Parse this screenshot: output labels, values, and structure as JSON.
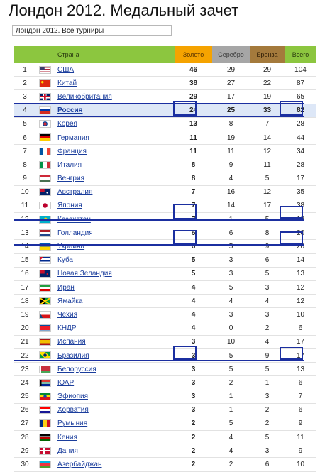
{
  "title": "Лондон 2012. Медальный зачет",
  "tournament_selector": {
    "value": "Лондон 2012. Все турниры"
  },
  "table": {
    "headers": {
      "rank": "",
      "flag": "",
      "country": "Страна",
      "gold": "Золото",
      "silver": "Серебро",
      "bronze": "Бронза",
      "total": "Всего"
    },
    "rows": [
      {
        "rank": "1",
        "country": "США",
        "gold": "46",
        "silver": "29",
        "bronze": "29",
        "total": "104",
        "flag": "us-flag-icon"
      },
      {
        "rank": "2",
        "country": "Китай",
        "gold": "38",
        "silver": "27",
        "bronze": "22",
        "total": "87",
        "flag": "cn-flag-icon"
      },
      {
        "rank": "3",
        "country": "Великобритания",
        "gold": "29",
        "silver": "17",
        "bronze": "19",
        "total": "65",
        "flag": "gb-flag-icon"
      },
      {
        "rank": "4",
        "country": "Россия",
        "gold": "24",
        "silver": "25",
        "bronze": "33",
        "total": "82",
        "flag": "ru-flag-icon",
        "highlighted": true
      },
      {
        "rank": "5",
        "country": "Корея",
        "gold": "13",
        "silver": "8",
        "bronze": "7",
        "total": "28",
        "flag": "kr-flag-icon"
      },
      {
        "rank": "6",
        "country": "Германия",
        "gold": "11",
        "silver": "19",
        "bronze": "14",
        "total": "44",
        "flag": "de-flag-icon"
      },
      {
        "rank": "7",
        "country": "Франция",
        "gold": "11",
        "silver": "11",
        "bronze": "12",
        "total": "34",
        "flag": "fr-flag-icon"
      },
      {
        "rank": "8",
        "country": "Италия",
        "gold": "8",
        "silver": "9",
        "bronze": "11",
        "total": "28",
        "flag": "it-flag-icon"
      },
      {
        "rank": "9",
        "country": "Венгрия",
        "gold": "8",
        "silver": "4",
        "bronze": "5",
        "total": "17",
        "flag": "hu-flag-icon"
      },
      {
        "rank": "10",
        "country": "Австралия",
        "gold": "7",
        "silver": "16",
        "bronze": "12",
        "total": "35",
        "flag": "au-flag-icon"
      },
      {
        "rank": "11",
        "country": "Япония",
        "gold": "7",
        "silver": "14",
        "bronze": "17",
        "total": "38",
        "flag": "jp-flag-icon"
      },
      {
        "rank": "12",
        "country": "Казахстан",
        "gold": "7",
        "silver": "1",
        "bronze": "5",
        "total": "13",
        "flag": "kz-flag-icon"
      },
      {
        "rank": "13",
        "country": "Голландия",
        "gold": "6",
        "silver": "6",
        "bronze": "8",
        "total": "20",
        "flag": "nl-flag-icon"
      },
      {
        "rank": "14",
        "country": "Украина",
        "gold": "6",
        "silver": "5",
        "bronze": "9",
        "total": "20",
        "flag": "ua-flag-icon"
      },
      {
        "rank": "15",
        "country": "Куба",
        "gold": "5",
        "silver": "3",
        "bronze": "6",
        "total": "14",
        "flag": "cu-flag-icon"
      },
      {
        "rank": "16",
        "country": "Новая Зеландия",
        "gold": "5",
        "silver": "3",
        "bronze": "5",
        "total": "13",
        "flag": "nz-flag-icon"
      },
      {
        "rank": "17",
        "country": "Иран",
        "gold": "4",
        "silver": "5",
        "bronze": "3",
        "total": "12",
        "flag": "ir-flag-icon"
      },
      {
        "rank": "18",
        "country": "Ямайка",
        "gold": "4",
        "silver": "4",
        "bronze": "4",
        "total": "12",
        "flag": "jm-flag-icon"
      },
      {
        "rank": "19",
        "country": "Чехия",
        "gold": "4",
        "silver": "3",
        "bronze": "3",
        "total": "10",
        "flag": "cz-flag-icon"
      },
      {
        "rank": "20",
        "country": "КНДР",
        "gold": "4",
        "silver": "0",
        "bronze": "2",
        "total": "6",
        "flag": "kp-flag-icon"
      },
      {
        "rank": "21",
        "country": "Испания",
        "gold": "3",
        "silver": "10",
        "bronze": "4",
        "total": "17",
        "flag": "es-flag-icon"
      },
      {
        "rank": "22",
        "country": "Бразилия",
        "gold": "3",
        "silver": "5",
        "bronze": "9",
        "total": "17",
        "flag": "br-flag-icon"
      },
      {
        "rank": "23",
        "country": "Белоруссия",
        "gold": "3",
        "silver": "5",
        "bronze": "5",
        "total": "13",
        "flag": "by-flag-icon"
      },
      {
        "rank": "24",
        "country": "ЮАР",
        "gold": "3",
        "silver": "2",
        "bronze": "1",
        "total": "6",
        "flag": "za-flag-icon"
      },
      {
        "rank": "25",
        "country": "Эфиопия",
        "gold": "3",
        "silver": "1",
        "bronze": "3",
        "total": "7",
        "flag": "et-flag-icon"
      },
      {
        "rank": "26",
        "country": "Хорватия",
        "gold": "3",
        "silver": "1",
        "bronze": "2",
        "total": "6",
        "flag": "hr-flag-icon"
      },
      {
        "rank": "27",
        "country": "Румыния",
        "gold": "2",
        "silver": "5",
        "bronze": "2",
        "total": "9",
        "flag": "ro-flag-icon"
      },
      {
        "rank": "28",
        "country": "Кения",
        "gold": "2",
        "silver": "4",
        "bronze": "5",
        "total": "11",
        "flag": "ke-flag-icon"
      },
      {
        "rank": "29",
        "country": "Дания",
        "gold": "2",
        "silver": "4",
        "bronze": "3",
        "total": "9",
        "flag": "dk-flag-icon"
      },
      {
        "rank": "30",
        "country": "Азербайджан",
        "gold": "2",
        "silver": "2",
        "bronze": "6",
        "total": "10",
        "flag": "az-flag-icon"
      }
    ]
  },
  "colors": {
    "header_green": "#8cc63f",
    "gold": "#f5a300",
    "silver": "#a6a6a6",
    "bronze": "#a47a3c",
    "link": "#1a3d9c",
    "highlight_row": "#dde7f7",
    "annotation": "#1b2fa0"
  }
}
